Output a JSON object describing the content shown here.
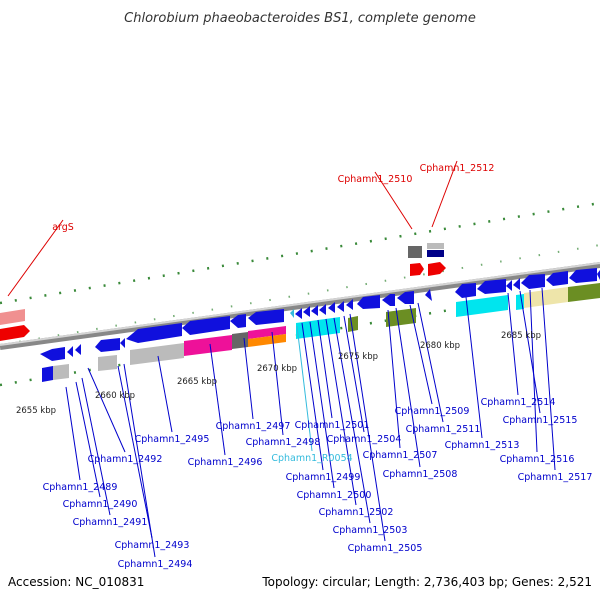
{
  "title": "Chlorobium phaeobacteroides BS1, complete genome",
  "footer": {
    "accession": "Accession: NC_010831",
    "summary": "Topology: circular; Length: 2,736,403 bp; Genes: 2,521"
  },
  "ticks": [
    "2655 kbp",
    "2660 kbp",
    "2665 kbp",
    "2670 kbp",
    "2675 kbp",
    "2680 kbp",
    "2685 kbp"
  ],
  "labels_top": [
    {
      "text": "argS",
      "color": "#dd0000"
    },
    {
      "text": "Cphamn1_2510",
      "color": "#dd0000"
    },
    {
      "text": "Cphamn1_2512",
      "color": "#dd0000"
    }
  ],
  "labels_bottom": [
    {
      "text": "Cphamn1_2489",
      "color": "#0000cc"
    },
    {
      "text": "Cphamn1_2490",
      "color": "#0000cc"
    },
    {
      "text": "Cphamn1_2491",
      "color": "#0000cc"
    },
    {
      "text": "Cphamn1_2492",
      "color": "#0000cc"
    },
    {
      "text": "Cphamn1_2493",
      "color": "#0000cc"
    },
    {
      "text": "Cphamn1_2494",
      "color": "#0000cc"
    },
    {
      "text": "Cphamn1_2495",
      "color": "#0000cc"
    },
    {
      "text": "Cphamn1_2496",
      "color": "#0000cc"
    },
    {
      "text": "Cphamn1_2497",
      "color": "#0000cc"
    },
    {
      "text": "Cphamn1_2498",
      "color": "#0000cc"
    },
    {
      "text": "Cphamn1_R0054",
      "color": "#33bbdd"
    },
    {
      "text": "Cphamn1_2499",
      "color": "#0000cc"
    },
    {
      "text": "Cphamn1_2500",
      "color": "#0000cc"
    },
    {
      "text": "Cphamn1_2501",
      "color": "#0000cc"
    },
    {
      "text": "Cphamn1_2502",
      "color": "#0000cc"
    },
    {
      "text": "Cphamn1_2503",
      "color": "#0000cc"
    },
    {
      "text": "Cphamn1_2504",
      "color": "#0000cc"
    },
    {
      "text": "Cphamn1_2505",
      "color": "#0000cc"
    },
    {
      "text": "Cphamn1_2507",
      "color": "#0000cc"
    },
    {
      "text": "Cphamn1_2508",
      "color": "#0000cc"
    },
    {
      "text": "Cphamn1_2509",
      "color": "#0000cc"
    },
    {
      "text": "Cphamn1_2511",
      "color": "#0000cc"
    },
    {
      "text": "Cphamn1_2513",
      "color": "#0000cc"
    },
    {
      "text": "Cphamn1_2514",
      "color": "#0000cc"
    },
    {
      "text": "Cphamn1_2515",
      "color": "#0000cc"
    },
    {
      "text": "Cphamn1_2516",
      "color": "#0000cc"
    },
    {
      "text": "Cphamn1_2517",
      "color": "#0000cc"
    }
  ]
}
